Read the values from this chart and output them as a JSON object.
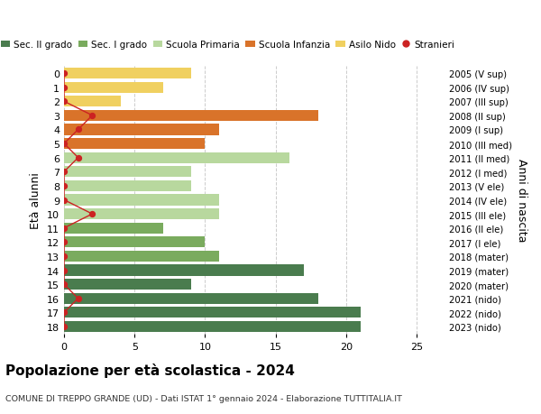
{
  "ages": [
    18,
    17,
    16,
    15,
    14,
    13,
    12,
    11,
    10,
    9,
    8,
    7,
    6,
    5,
    4,
    3,
    2,
    1,
    0
  ],
  "right_labels": [
    "2005 (V sup)",
    "2006 (IV sup)",
    "2007 (III sup)",
    "2008 (II sup)",
    "2009 (I sup)",
    "2010 (III med)",
    "2011 (II med)",
    "2012 (I med)",
    "2013 (V ele)",
    "2014 (IV ele)",
    "2015 (III ele)",
    "2016 (II ele)",
    "2017 (I ele)",
    "2018 (mater)",
    "2019 (mater)",
    "2020 (mater)",
    "2021 (nido)",
    "2022 (nido)",
    "2023 (nido)"
  ],
  "bar_values": [
    21,
    21,
    18,
    9,
    17,
    11,
    10,
    7,
    11,
    11,
    9,
    9,
    16,
    10,
    11,
    18,
    4,
    7,
    9
  ],
  "bar_colors": [
    "#4a7c4e",
    "#4a7c4e",
    "#4a7c4e",
    "#4a7c4e",
    "#4a7c4e",
    "#7aab5e",
    "#7aab5e",
    "#7aab5e",
    "#b8d89e",
    "#b8d89e",
    "#b8d89e",
    "#b8d89e",
    "#b8d89e",
    "#d9732a",
    "#d9732a",
    "#d9732a",
    "#f0d060",
    "#f0d060",
    "#f0d060"
  ],
  "stranieri_x": [
    0,
    0,
    1,
    0,
    0,
    0,
    0,
    0,
    2,
    0,
    0,
    0,
    1,
    0,
    1,
    2,
    0,
    0,
    0
  ],
  "legend_labels": [
    "Sec. II grado",
    "Sec. I grado",
    "Scuola Primaria",
    "Scuola Infanzia",
    "Asilo Nido",
    "Stranieri"
  ],
  "legend_colors": [
    "#4a7c4e",
    "#7aab5e",
    "#b8d89e",
    "#d9732a",
    "#f0d060",
    "#cc2222"
  ],
  "title": "Popolazione per età scolastica - 2024",
  "subtitle": "COMUNE DI TREPPO GRANDE (UD) - Dati ISTAT 1° gennaio 2024 - Elaborazione TUTTITALIA.IT",
  "ylabel": "Età alunni",
  "right_ylabel": "Anni di nascita",
  "xlim": [
    0,
    27
  ],
  "xticks": [
    0,
    5,
    10,
    15,
    20,
    25
  ],
  "background_color": "#ffffff",
  "grid_color": "#cccccc",
  "bar_height": 0.78
}
